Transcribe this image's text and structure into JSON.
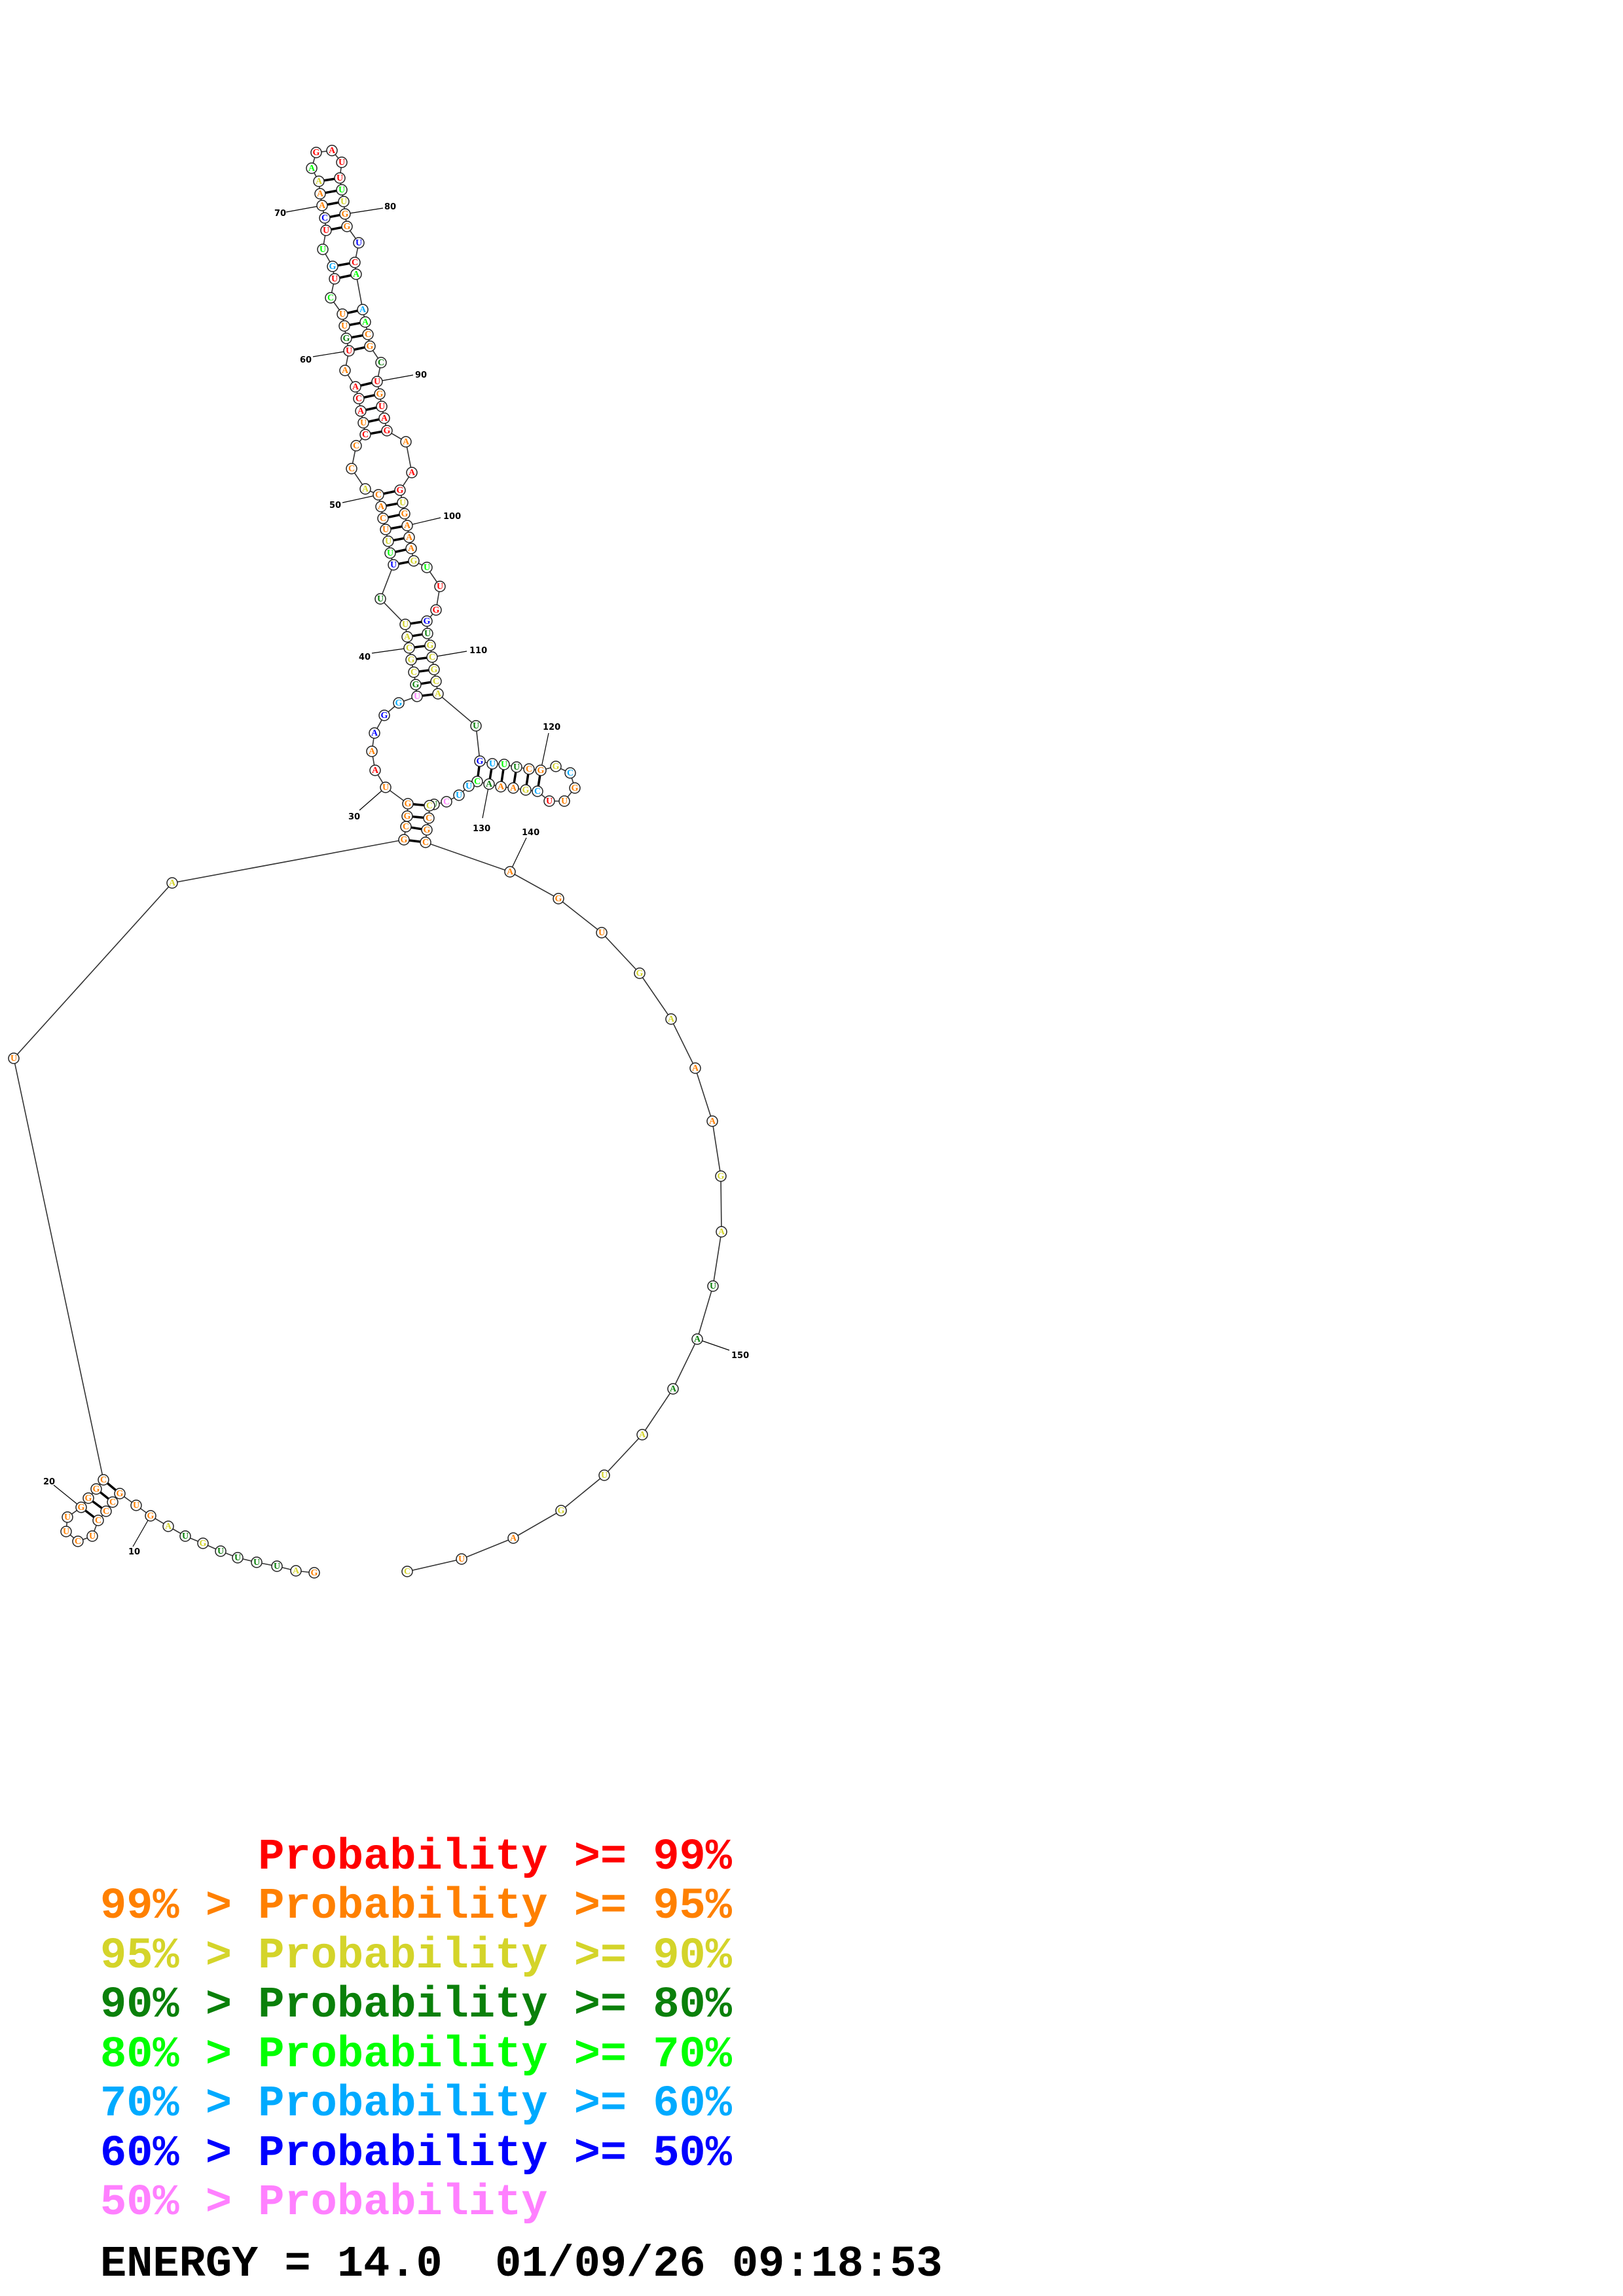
{
  "sequence": "GAUUUUGUAGUGCCCUCUUGGGCUAGCGGUAAAGGUGCGCAUUUUUUCACACCCUACAAUGUUCUGUUCAAAAGAUUUUGGUCAAACGCUGUAGAAGUGAAAGUUGGUGCGCAUGUUUCGGCGUUCGAAACUUCUCCGCAGUGAAAGAUAAAUGAUC",
  "probability_class": "oyggggygyoooooooooooooooyooooorobbcpgyyyyygblyooooyoororrrorgoolrclrbooylrrrrlyoobrlcloogrorrrorryooooylrrbgyyyyygbclgooycoorcyooglccpgyooooooyyooyygggyyyooyyy",
  "class_colors": {
    "r": "#ff0000",
    "o": "#ff8000",
    "y": "#d4d42a",
    "g": "#0a800a",
    "l": "#00ff00",
    "c": "#00aaff",
    "b": "#0000ff",
    "p": "#ff80ff"
  },
  "pairs": [
    [
      12,
      23
    ],
    [
      13,
      22
    ],
    [
      14,
      21
    ],
    [
      15,
      20
    ],
    [
      26,
      139
    ],
    [
      27,
      138
    ],
    [
      28,
      137
    ],
    [
      29,
      136
    ],
    [
      36,
      113
    ],
    [
      37,
      112
    ],
    [
      38,
      111
    ],
    [
      39,
      110
    ],
    [
      40,
      109
    ],
    [
      41,
      108
    ],
    [
      42,
      107
    ],
    [
      44,
      103
    ],
    [
      45,
      102
    ],
    [
      46,
      101
    ],
    [
      47,
      100
    ],
    [
      48,
      99
    ],
    [
      49,
      98
    ],
    [
      50,
      97
    ],
    [
      54,
      94
    ],
    [
      55,
      93
    ],
    [
      56,
      92
    ],
    [
      57,
      91
    ],
    [
      58,
      90
    ],
    [
      60,
      88
    ],
    [
      61,
      87
    ],
    [
      62,
      86
    ],
    [
      63,
      85
    ],
    [
      65,
      84
    ],
    [
      66,
      83
    ],
    [
      68,
      81
    ],
    [
      69,
      80
    ],
    [
      70,
      79
    ],
    [
      71,
      78
    ],
    [
      72,
      77
    ],
    [
      115,
      131
    ],
    [
      116,
      130
    ],
    [
      117,
      129
    ],
    [
      118,
      128
    ],
    [
      119,
      127
    ],
    [
      120,
      126
    ]
  ],
  "position_labels": [
    "10",
    "20",
    "30",
    "40",
    "50",
    "60",
    "70",
    "80",
    "90",
    "100",
    "110",
    "120",
    "130",
    "140",
    "150"
  ],
  "legend": [
    {
      "text": "      Probability >= 99%",
      "color": "#ff0000"
    },
    {
      "text": "99% > Probability >= 95%",
      "color": "#ff8000"
    },
    {
      "text": "95% > Probability >= 90%",
      "color": "#d4d42a"
    },
    {
      "text": "90% > Probability >= 80%",
      "color": "#0a800a"
    },
    {
      "text": "80% > Probability >= 70%",
      "color": "#00ff00"
    },
    {
      "text": "70% > Probability >= 60%",
      "color": "#00aaff"
    },
    {
      "text": "60% > Probability >= 50%",
      "color": "#0000ff"
    },
    {
      "text": "50% > Probability",
      "color": "#ff80ff"
    }
  ],
  "footer": {
    "text": "ENERGY = 14.0  01/09/26 09:18:53"
  }
}
